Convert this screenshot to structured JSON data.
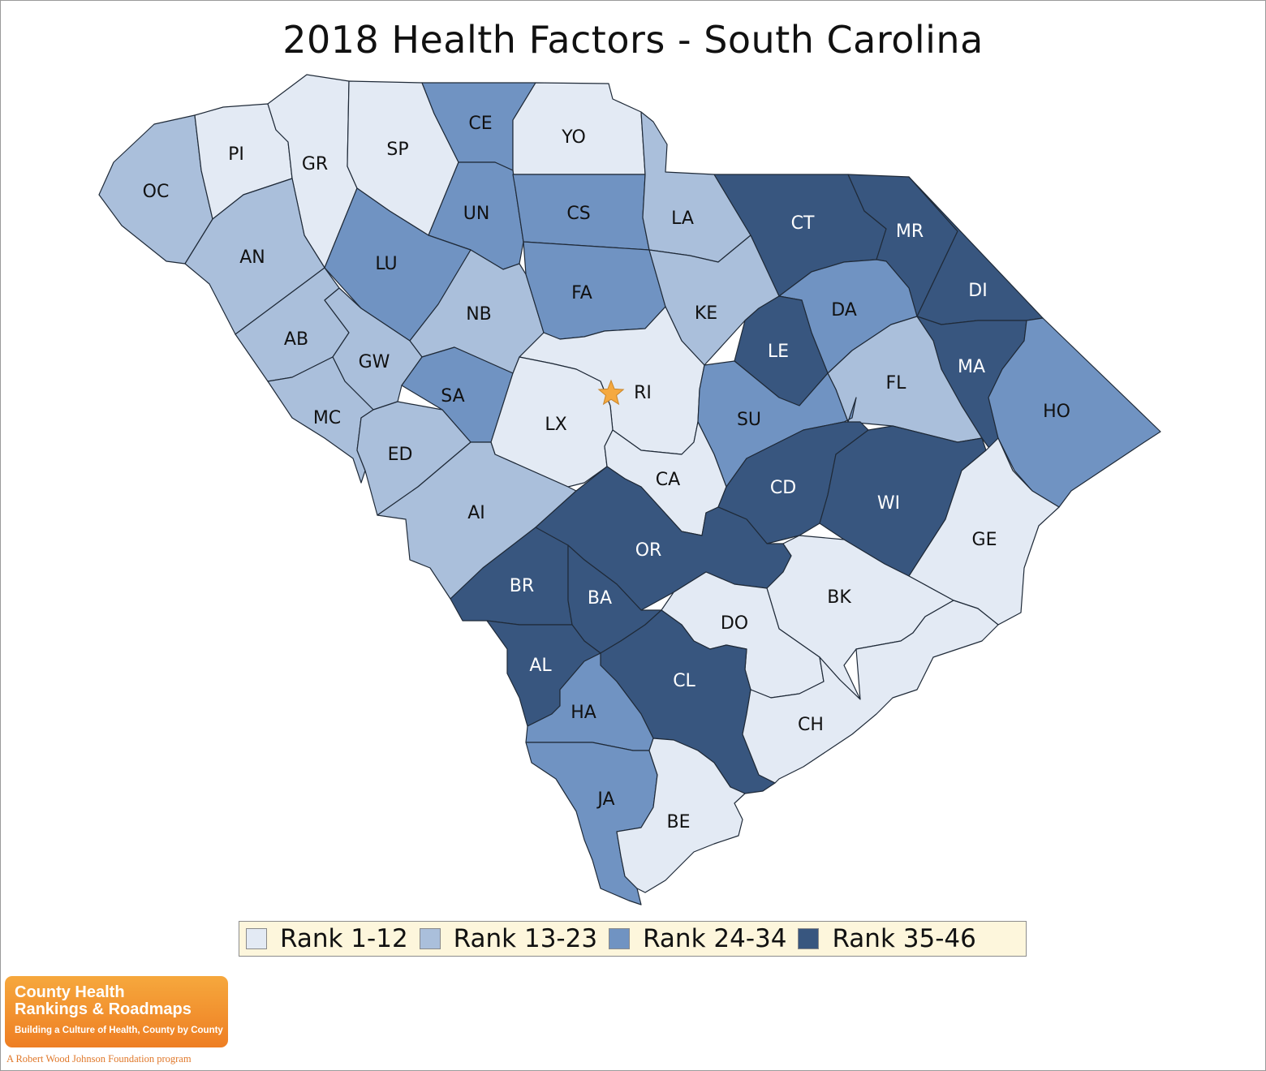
{
  "title": "2018 Health Factors - South Carolina",
  "colors": {
    "rank_1_12": "#e3eaf4",
    "rank_13_23": "#aabfdb",
    "rank_24_34": "#7093c2",
    "rank_35_46": "#38567f",
    "capital_star": "#f5a940"
  },
  "legend": [
    {
      "label": "Rank 1-12",
      "class": "rank_1_12"
    },
    {
      "label": "Rank 13-23",
      "class": "rank_13_23"
    },
    {
      "label": "Rank 24-34",
      "class": "rank_24_34"
    },
    {
      "label": "Rank 35-46",
      "class": "rank_35_46"
    }
  ],
  "counties": [
    {
      "code": "OC",
      "rank_group": "rank_13_23"
    },
    {
      "code": "PI",
      "rank_group": "rank_1_12"
    },
    {
      "code": "GR",
      "rank_group": "rank_1_12"
    },
    {
      "code": "SP",
      "rank_group": "rank_1_12"
    },
    {
      "code": "CE",
      "rank_group": "rank_24_34"
    },
    {
      "code": "YO",
      "rank_group": "rank_1_12"
    },
    {
      "code": "AN",
      "rank_group": "rank_13_23"
    },
    {
      "code": "UN",
      "rank_group": "rank_24_34"
    },
    {
      "code": "CS",
      "rank_group": "rank_24_34"
    },
    {
      "code": "LA",
      "rank_group": "rank_13_23"
    },
    {
      "code": "CT",
      "rank_group": "rank_35_46"
    },
    {
      "code": "MR",
      "rank_group": "rank_35_46"
    },
    {
      "code": "LU",
      "rank_group": "rank_24_34"
    },
    {
      "code": "NB",
      "rank_group": "rank_13_23"
    },
    {
      "code": "FA",
      "rank_group": "rank_24_34"
    },
    {
      "code": "KE",
      "rank_group": "rank_13_23"
    },
    {
      "code": "DA",
      "rank_group": "rank_24_34"
    },
    {
      "code": "DI",
      "rank_group": "rank_35_46"
    },
    {
      "code": "AB",
      "rank_group": "rank_13_23"
    },
    {
      "code": "GW",
      "rank_group": "rank_13_23"
    },
    {
      "code": "LE",
      "rank_group": "rank_35_46"
    },
    {
      "code": "MA",
      "rank_group": "rank_35_46"
    },
    {
      "code": "SA",
      "rank_group": "rank_24_34"
    },
    {
      "code": "RI",
      "rank_group": "rank_1_12"
    },
    {
      "code": "FL",
      "rank_group": "rank_13_23"
    },
    {
      "code": "HO",
      "rank_group": "rank_24_34"
    },
    {
      "code": "MC",
      "rank_group": "rank_13_23"
    },
    {
      "code": "LX",
      "rank_group": "rank_1_12"
    },
    {
      "code": "SU",
      "rank_group": "rank_24_34"
    },
    {
      "code": "ED",
      "rank_group": "rank_13_23"
    },
    {
      "code": "CA",
      "rank_group": "rank_1_12"
    },
    {
      "code": "CD",
      "rank_group": "rank_35_46"
    },
    {
      "code": "WI",
      "rank_group": "rank_35_46"
    },
    {
      "code": "AI",
      "rank_group": "rank_13_23"
    },
    {
      "code": "GE",
      "rank_group": "rank_1_12"
    },
    {
      "code": "OR",
      "rank_group": "rank_35_46"
    },
    {
      "code": "BR",
      "rank_group": "rank_35_46"
    },
    {
      "code": "BK",
      "rank_group": "rank_1_12"
    },
    {
      "code": "BA",
      "rank_group": "rank_35_46"
    },
    {
      "code": "DO",
      "rank_group": "rank_1_12"
    },
    {
      "code": "AL",
      "rank_group": "rank_35_46"
    },
    {
      "code": "CL",
      "rank_group": "rank_35_46"
    },
    {
      "code": "HA",
      "rank_group": "rank_24_34"
    },
    {
      "code": "CH",
      "rank_group": "rank_1_12"
    },
    {
      "code": "JA",
      "rank_group": "rank_24_34"
    },
    {
      "code": "BE",
      "rank_group": "rank_1_12"
    }
  ],
  "logo": {
    "line1": "County Health",
    "line2": "Rankings & Roadmaps",
    "tagline": "Building a Culture of Health, County by County",
    "footer": "A Robert Wood Johnson Foundation program"
  }
}
